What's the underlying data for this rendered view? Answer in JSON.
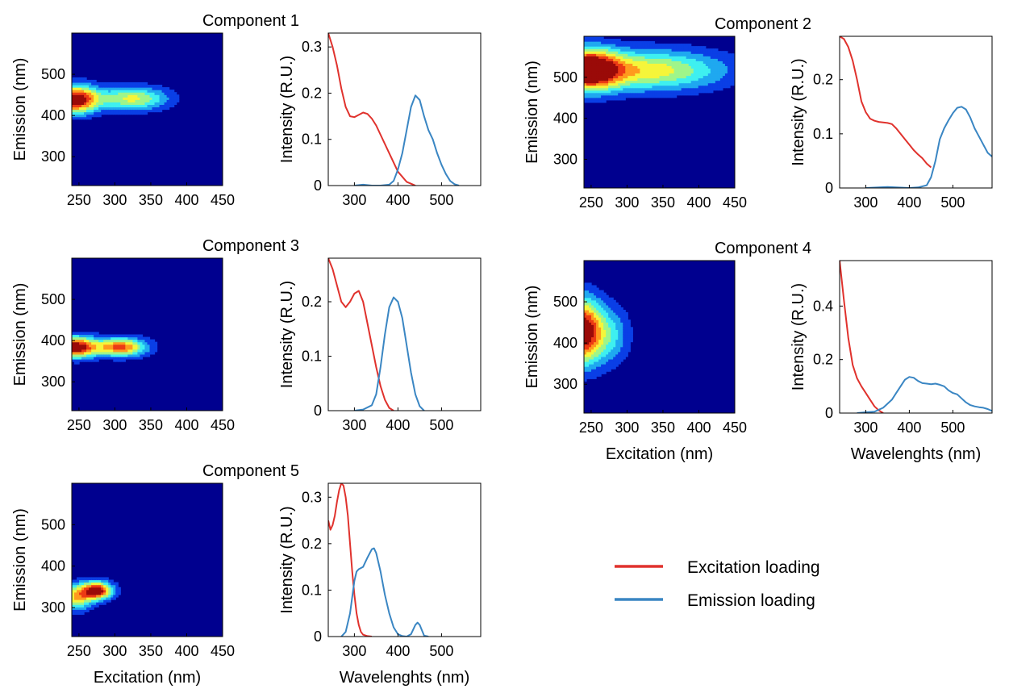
{
  "colors": {
    "excitation": "#e0322d",
    "emission": "#3a86c3",
    "contour_background": "#00008f",
    "contour_scale": [
      "#00008f",
      "#0a3fe6",
      "#1fa8f0",
      "#3ef0f0",
      "#9ff58a",
      "#f5f53a",
      "#ff9a1e",
      "#ec3a14",
      "#9a0a08"
    ]
  },
  "legend": {
    "excitation_label": "Excitation loading",
    "emission_label": "Emission loading"
  },
  "axis_labels": {
    "emission": "Emission (nm)",
    "excitation": "Excitation (nm)",
    "intensity": "Intensity (R.U.)",
    "wavelengths": "Wavelenghts (nm)"
  },
  "chart_data": [
    {
      "type": "heatmap",
      "title": "Component 1",
      "xlabel": "",
      "ylabel": "Emission (nm)",
      "xlim": [
        240,
        450
      ],
      "ylim": [
        230,
        600
      ],
      "xticks": [
        250,
        300,
        350,
        400,
        450
      ],
      "yticks": [
        300,
        400,
        500
      ],
      "peaks": [
        {
          "ex": 245,
          "em": 440,
          "amp": 1.0,
          "sx": 22,
          "sy": 24
        },
        {
          "ex": 325,
          "em": 442,
          "amp": 0.58,
          "sx": 35,
          "sy": 20
        }
      ]
    },
    {
      "type": "line",
      "title": "",
      "xlabel": "",
      "ylabel": "Intensity (R.U.)",
      "xlim": [
        240,
        590
      ],
      "ylim": [
        0,
        0.33
      ],
      "xticks": [
        300,
        400,
        500
      ],
      "yticks": [
        0,
        0.1,
        0.2,
        0.3
      ],
      "ytick_labels": [
        "0",
        "0.1",
        "0.2",
        "0.3"
      ],
      "series": [
        {
          "role": "excitation",
          "x": [
            240,
            250,
            260,
            270,
            280,
            290,
            300,
            310,
            320,
            330,
            340,
            350,
            360,
            380,
            400,
            420,
            440
          ],
          "y": [
            0.33,
            0.3,
            0.26,
            0.21,
            0.17,
            0.15,
            0.148,
            0.153,
            0.158,
            0.155,
            0.145,
            0.13,
            0.11,
            0.07,
            0.03,
            0.008,
            0
          ]
        },
        {
          "role": "emission",
          "x": [
            300,
            320,
            340,
            360,
            380,
            390,
            400,
            410,
            420,
            430,
            440,
            450,
            460,
            470,
            480,
            490,
            500,
            510,
            520,
            530,
            540
          ],
          "y": [
            0,
            0.002,
            0,
            0,
            0.002,
            0.01,
            0.035,
            0.07,
            0.12,
            0.17,
            0.195,
            0.185,
            0.15,
            0.12,
            0.1,
            0.07,
            0.045,
            0.025,
            0.01,
            0.003,
            0
          ]
        }
      ]
    },
    {
      "type": "heatmap",
      "title": "Component 2",
      "xlabel": "",
      "ylabel": "Emission (nm)",
      "xlim": [
        240,
        450
      ],
      "ylim": [
        230,
        600
      ],
      "xticks": [
        250,
        300,
        350,
        400,
        450
      ],
      "yticks": [
        300,
        400,
        500
      ],
      "peaks": [
        {
          "ex": 245,
          "em": 520,
          "amp": 1.0,
          "sx": 30,
          "sy": 35
        },
        {
          "ex": 330,
          "em": 518,
          "amp": 0.62,
          "sx": 75,
          "sy": 35
        }
      ]
    },
    {
      "type": "line",
      "title": "",
      "xlabel": "",
      "ylabel": "Intensity (R.U.)",
      "xlim": [
        240,
        590
      ],
      "ylim": [
        0,
        0.28
      ],
      "xticks": [
        300,
        400,
        500
      ],
      "yticks": [
        0,
        0.1,
        0.2
      ],
      "ytick_labels": [
        "0",
        "0.1",
        "0.2"
      ],
      "series": [
        {
          "role": "excitation",
          "x": [
            240,
            250,
            260,
            270,
            280,
            290,
            300,
            310,
            320,
            330,
            340,
            350,
            360,
            370,
            380,
            390,
            400,
            410,
            420,
            430,
            440,
            450
          ],
          "y": [
            0.28,
            0.275,
            0.26,
            0.235,
            0.2,
            0.16,
            0.14,
            0.128,
            0.124,
            0.122,
            0.121,
            0.12,
            0.118,
            0.11,
            0.1,
            0.09,
            0.08,
            0.07,
            0.062,
            0.055,
            0.045,
            0.038
          ]
        },
        {
          "role": "emission",
          "x": [
            300,
            350,
            400,
            420,
            440,
            450,
            460,
            470,
            480,
            490,
            500,
            510,
            520,
            530,
            540,
            550,
            560,
            570,
            580,
            590
          ],
          "y": [
            0,
            0.002,
            0,
            0.001,
            0.005,
            0.02,
            0.05,
            0.09,
            0.11,
            0.125,
            0.138,
            0.148,
            0.15,
            0.145,
            0.13,
            0.11,
            0.095,
            0.08,
            0.065,
            0.058
          ]
        }
      ]
    },
    {
      "type": "heatmap",
      "title": "Component 3",
      "xlabel": "",
      "ylabel": "Emission (nm)",
      "xlim": [
        240,
        450
      ],
      "ylim": [
        230,
        600
      ],
      "xticks": [
        250,
        300,
        350,
        400,
        450
      ],
      "yticks": [
        300,
        400,
        500
      ],
      "peaks": [
        {
          "ex": 245,
          "em": 385,
          "amp": 1.0,
          "sx": 20,
          "sy": 18
        },
        {
          "ex": 308,
          "em": 385,
          "amp": 0.82,
          "sx": 25,
          "sy": 16
        }
      ]
    },
    {
      "type": "line",
      "title": "",
      "xlabel": "",
      "ylabel": "Intensity (R.U.)",
      "xlim": [
        240,
        590
      ],
      "ylim": [
        0,
        0.28
      ],
      "xticks": [
        300,
        400,
        500
      ],
      "yticks": [
        0,
        0.1,
        0.2
      ],
      "ytick_labels": [
        "0",
        "0.1",
        "0.2"
      ],
      "series": [
        {
          "role": "excitation",
          "x": [
            240,
            250,
            260,
            270,
            280,
            290,
            300,
            310,
            320,
            330,
            340,
            350,
            360,
            370,
            380,
            390
          ],
          "y": [
            0.28,
            0.26,
            0.23,
            0.2,
            0.19,
            0.2,
            0.215,
            0.22,
            0.2,
            0.16,
            0.12,
            0.08,
            0.045,
            0.02,
            0.005,
            0
          ]
        },
        {
          "role": "emission",
          "x": [
            300,
            320,
            340,
            350,
            360,
            370,
            380,
            390,
            400,
            410,
            420,
            430,
            440,
            450,
            460
          ],
          "y": [
            0,
            0.002,
            0.01,
            0.03,
            0.08,
            0.14,
            0.19,
            0.208,
            0.2,
            0.17,
            0.12,
            0.07,
            0.03,
            0.008,
            0
          ]
        }
      ]
    },
    {
      "type": "heatmap",
      "title": "Component 4",
      "xlabel": "Excitation (nm)",
      "ylabel": "Emission (nm)",
      "xlim": [
        240,
        450
      ],
      "ylim": [
        230,
        600
      ],
      "xticks": [
        250,
        300,
        350,
        400,
        450
      ],
      "yticks": [
        300,
        400,
        500
      ],
      "peaks": [
        {
          "ex": 238,
          "em": 430,
          "amp": 1.0,
          "sx": 18,
          "sy": 55
        },
        {
          "ex": 275,
          "em": 420,
          "amp": 0.35,
          "sx": 20,
          "sy": 50
        }
      ]
    },
    {
      "type": "line",
      "title": "",
      "xlabel": "Wavelenghts (nm)",
      "ylabel": "Intensity (R.U.)",
      "xlim": [
        240,
        590
      ],
      "ylim": [
        0,
        0.57
      ],
      "xticks": [
        300,
        400,
        500
      ],
      "yticks": [
        0,
        0.2,
        0.4
      ],
      "ytick_labels": [
        "0",
        "0.2",
        "0.4"
      ],
      "series": [
        {
          "role": "excitation",
          "x": [
            240,
            250,
            260,
            270,
            280,
            290,
            300,
            310,
            320,
            330,
            340
          ],
          "y": [
            0.57,
            0.42,
            0.28,
            0.18,
            0.13,
            0.1,
            0.075,
            0.05,
            0.025,
            0.01,
            0
          ]
        },
        {
          "role": "emission",
          "x": [
            280,
            300,
            320,
            340,
            360,
            370,
            380,
            390,
            400,
            410,
            420,
            430,
            440,
            450,
            460,
            470,
            480,
            490,
            500,
            510,
            520,
            530,
            540,
            550,
            560,
            570,
            580,
            590
          ],
          "y": [
            0,
            0.003,
            0.005,
            0.02,
            0.05,
            0.075,
            0.1,
            0.125,
            0.135,
            0.132,
            0.12,
            0.112,
            0.11,
            0.108,
            0.11,
            0.106,
            0.1,
            0.085,
            0.075,
            0.07,
            0.055,
            0.04,
            0.03,
            0.025,
            0.022,
            0.02,
            0.015,
            0.008
          ]
        }
      ]
    },
    {
      "type": "heatmap",
      "title": "Component 5",
      "xlabel": "Excitation (nm)",
      "ylabel": "Emission (nm)",
      "xlim": [
        240,
        450
      ],
      "ylim": [
        230,
        600
      ],
      "xticks": [
        250,
        300,
        350,
        400,
        450
      ],
      "yticks": [
        300,
        400,
        500
      ],
      "peaks": [
        {
          "ex": 275,
          "em": 342,
          "amp": 1.0,
          "sx": 15,
          "sy": 15
        },
        {
          "ex": 245,
          "em": 325,
          "amp": 0.62,
          "sx": 16,
          "sy": 22
        }
      ]
    },
    {
      "type": "line",
      "title": "",
      "xlabel": "Wavelenghts (nm)",
      "ylabel": "Intensity (R.U.)",
      "xlim": [
        240,
        590
      ],
      "ylim": [
        0,
        0.33
      ],
      "xticks": [
        300,
        400,
        500
      ],
      "yticks": [
        0,
        0.1,
        0.2,
        0.3
      ],
      "ytick_labels": [
        "0",
        "0.1",
        "0.2",
        "0.3"
      ],
      "series": [
        {
          "role": "excitation",
          "x": [
            240,
            245,
            250,
            255,
            260,
            265,
            270,
            275,
            280,
            285,
            290,
            295,
            300,
            305,
            310,
            315,
            320,
            330,
            340
          ],
          "y": [
            0.25,
            0.23,
            0.24,
            0.26,
            0.29,
            0.315,
            0.33,
            0.325,
            0.3,
            0.26,
            0.2,
            0.14,
            0.09,
            0.05,
            0.025,
            0.01,
            0.004,
            0.001,
            0
          ]
        },
        {
          "role": "emission",
          "x": [
            270,
            280,
            290,
            300,
            305,
            310,
            320,
            330,
            340,
            345,
            350,
            360,
            370,
            380,
            390,
            400,
            410,
            420,
            430,
            440,
            445,
            450,
            460,
            470
          ],
          "y": [
            0,
            0.01,
            0.05,
            0.12,
            0.14,
            0.145,
            0.15,
            0.17,
            0.188,
            0.19,
            0.18,
            0.14,
            0.09,
            0.05,
            0.02,
            0.005,
            0.001,
            0,
            0.005,
            0.025,
            0.03,
            0.025,
            0.002,
            0
          ]
        }
      ]
    }
  ]
}
